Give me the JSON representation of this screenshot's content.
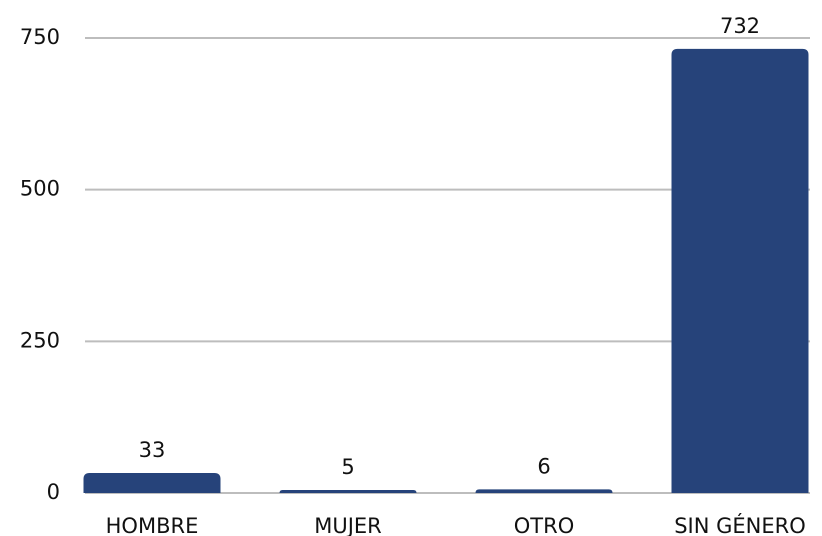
{
  "chart_data": {
    "type": "bar",
    "categories": [
      "HOMBRE",
      "MUJER",
      "OTRO",
      "SIN GÉNERO"
    ],
    "values": [
      33,
      5,
      6,
      732
    ],
    "color": "#26437a",
    "ylim": [
      0,
      750
    ],
    "yticks": [
      0,
      250,
      500,
      750
    ],
    "grid": true
  }
}
